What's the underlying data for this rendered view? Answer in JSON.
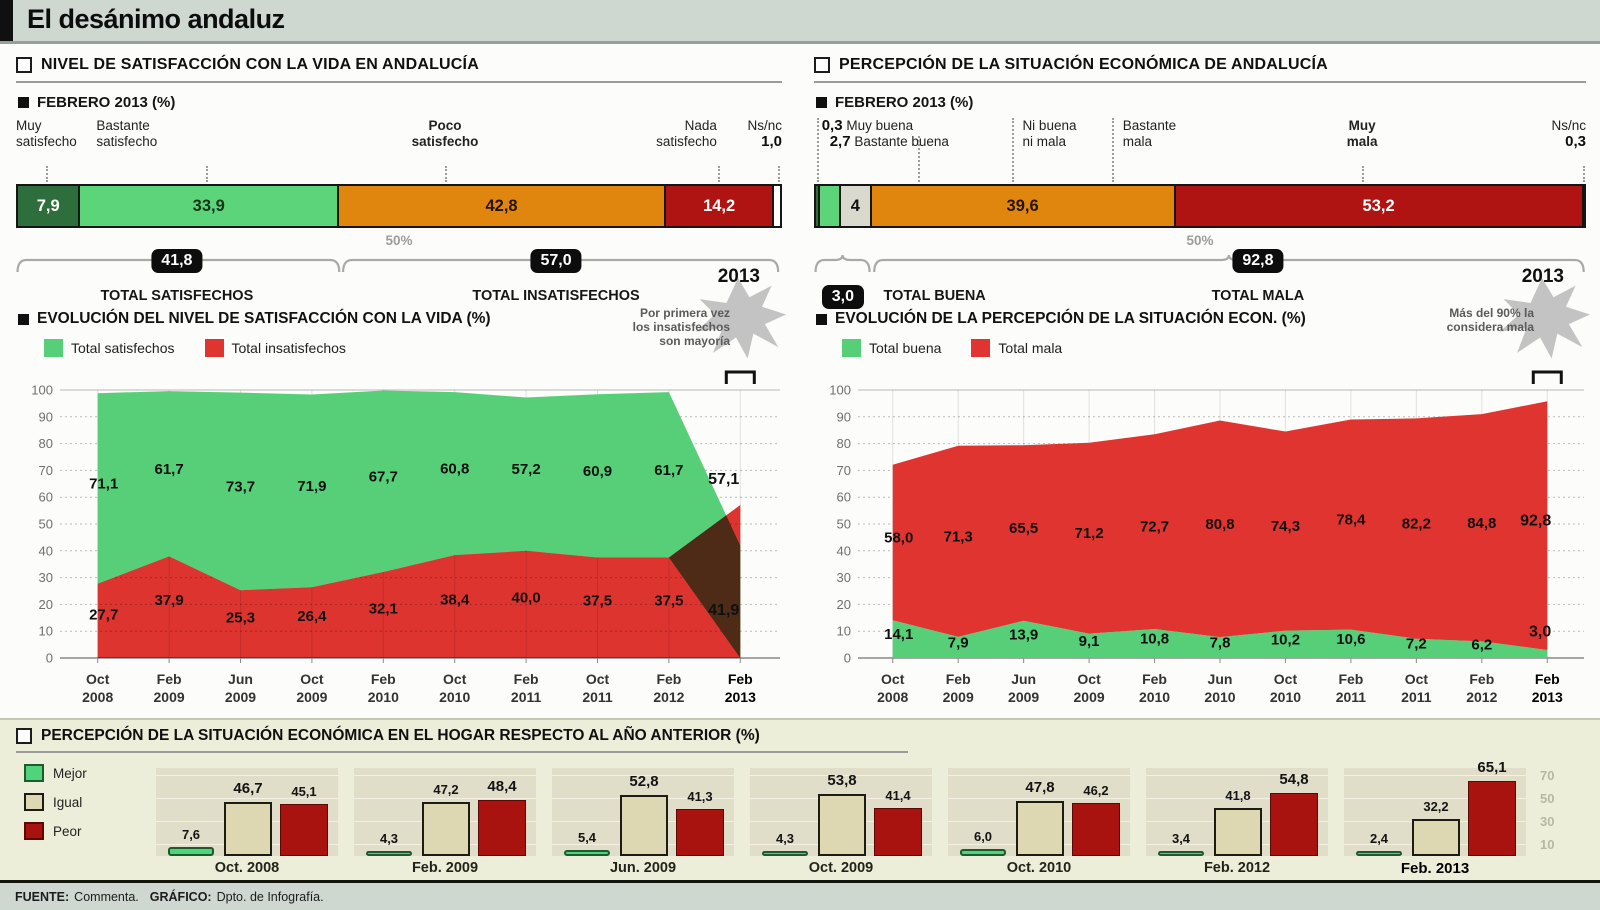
{
  "page": {
    "title": "El desánimo andaluz"
  },
  "footer": {
    "source_label": "FUENTE:",
    "source": "Commenta.",
    "graphic_label": "GRÁFICO:",
    "graphic": "Dpto. de Infografía."
  },
  "panels": {
    "left": {
      "title": "NIVEL DE SATISFACCIÓN CON LA VIDA EN ANDALUCÍA",
      "subtitle": "FEBRERO 2013 (%)",
      "labels": {
        "l1a": "Muy",
        "l1b": "satisfecho",
        "l2a": "Bastante",
        "l2b": "satisfecho",
        "l3a": "Poco",
        "l3b": "satisfecho",
        "l4a": "Nada",
        "l4b": "satisfecho",
        "l5a": "Ns/nc",
        "l5v": "1,0"
      },
      "fifty": "50%",
      "totals": {
        "v1": "41,8",
        "t1": "TOTAL SATISFECHOS",
        "v2": "57,0",
        "t2": "TOTAL INSATISFECHOS"
      },
      "evo_title": "EVOLUCIÓN DEL NIVEL DE SATISFACCIÓN CON LA VIDA (%)",
      "anno_year": "2013",
      "anno1": "Por primera vez",
      "anno2": "los insatisfechos",
      "anno3": "son mayoría"
    },
    "right": {
      "title": "PERCEPCIÓN DE LA SITUACIÓN ECONÓMICA DE ANDALUCÍA",
      "subtitle": "FEBRERO 2013 (%)",
      "labels": {
        "v1": "0,3",
        "l1": "Muy buena",
        "v2": "2,7",
        "l2": "Bastante buena",
        "l3a": "Ni buena",
        "l3b": "ni mala",
        "l4a": "Bastante",
        "l4b": "mala",
        "l5a": "Muy",
        "l5b": "mala",
        "l6a": "Ns/nc",
        "l6v": "0,3"
      },
      "fifty": "50%",
      "totals": {
        "v1": "3,0",
        "t1": "TOTAL BUENA",
        "v2": "92,8",
        "t2": "TOTAL MALA"
      },
      "evo_title": "EVOLUCIÓN DE LA PERCEPCIÓN DE LA SITUACIÓN ECON. (%)",
      "anno_year": "2013",
      "anno1": "Más del 90% la",
      "anno2": "considera mala"
    },
    "bottom": {
      "title": "PERCEPCIÓN DE LA SITUACIÓN ECONÓMICA EN EL HOGAR RESPECTO AL AÑO ANTERIOR (%)"
    }
  },
  "chart_data": [
    {
      "id": "satisfaction_bar",
      "type": "bar",
      "stacked": true,
      "horizontal": true,
      "title": "NIVEL DE SATISFACCIÓN CON LA VIDA EN ANDALUCÍA — FEBRERO 2013 (%)",
      "segments": [
        {
          "label": "Muy satisfecho",
          "value": 7.9,
          "display": "7,9",
          "color": "#2e6e3c",
          "text_color": "#ffffff",
          "show_value": true
        },
        {
          "label": "Bastante satisfecho",
          "value": 33.9,
          "display": "33,9",
          "color": "#5bd47a",
          "text_color": "#15351b",
          "show_value": true
        },
        {
          "label": "Poco satisfecho",
          "value": 42.8,
          "display": "42,8",
          "color": "#e0860e",
          "text_color": "#241403",
          "show_value": true
        },
        {
          "label": "Nada satisfecho",
          "value": 14.2,
          "display": "14,2",
          "color": "#b01412",
          "text_color": "#ffffff",
          "show_value": true
        },
        {
          "label": "Ns/nc",
          "value": 1.0,
          "display": "1,0",
          "color": "#ffffff",
          "text_color": "#111111",
          "show_value": false
        }
      ],
      "axis_mark": "50%",
      "totals": [
        {
          "display": "41,8",
          "label": "TOTAL SATISFECHOS",
          "from": 0.002,
          "to": 0.422
        },
        {
          "display": "57,0",
          "label": "TOTAL INSATISFECHOS",
          "from": 0.427,
          "to": 0.995
        }
      ]
    },
    {
      "id": "economy_bar",
      "type": "bar",
      "stacked": true,
      "horizontal": true,
      "title": "PERCEPCIÓN DE LA SITUACIÓN ECONÓMICA DE ANDALUCÍA — FEBRERO 2013 (%)",
      "segments": [
        {
          "label": "Muy buena",
          "value": 0.3,
          "display": "0,3",
          "color": "#2e6e3c",
          "text_color": "#ffffff",
          "show_value": false
        },
        {
          "label": "Bastante buena",
          "value": 2.7,
          "display": "2,7",
          "color": "#5bd47a",
          "text_color": "#15351b",
          "show_value": false
        },
        {
          "label": "Ni buena ni mala",
          "value": 4,
          "display": "4",
          "color": "#d9d9ce",
          "text_color": "#111111",
          "show_value": true
        },
        {
          "label": "Bastante mala",
          "value": 39.6,
          "display": "39,6",
          "color": "#e0860e",
          "text_color": "#241403",
          "show_value": true
        },
        {
          "label": "Muy mala",
          "value": 53.2,
          "display": "53,2",
          "color": "#b01412",
          "text_color": "#ffffff",
          "show_value": true
        },
        {
          "label": "Ns/nc",
          "value": 0.3,
          "display": "0,3",
          "color": "#ffffff",
          "text_color": "#111111",
          "show_value": false
        }
      ],
      "axis_mark": "50%",
      "totals": [
        {
          "display": "3,0",
          "label": "TOTAL BUENA",
          "from": 0.002,
          "to": 0.072
        },
        {
          "display": "92,8",
          "label": "TOTAL MALA",
          "from": 0.078,
          "to": 0.997
        }
      ]
    },
    {
      "id": "satisfaction_evolution",
      "type": "area",
      "ylim": [
        0,
        100
      ],
      "grid": true,
      "x": [
        [
          "Oct",
          "2008"
        ],
        [
          "Feb",
          "2009"
        ],
        [
          "Jun",
          "2009"
        ],
        [
          "Oct",
          "2009"
        ],
        [
          "Feb",
          "2010"
        ],
        [
          "Oct",
          "2010"
        ],
        [
          "Feb",
          "2011"
        ],
        [
          "Oct",
          "2011"
        ],
        [
          "Feb",
          "2012"
        ],
        [
          "Feb",
          "2013"
        ]
      ],
      "series": [
        {
          "name": "Total satisfechos",
          "color": "#57cf78",
          "values": [
            71.1,
            61.7,
            73.7,
            71.9,
            67.7,
            60.8,
            57.2,
            60.9,
            61.7,
            41.9
          ]
        },
        {
          "name": "Total insatisfechos",
          "color": "#e03431",
          "values": [
            27.7,
            37.9,
            25.3,
            26.4,
            32.1,
            38.4,
            40.0,
            37.5,
            37.5,
            57.1
          ]
        }
      ],
      "annotation": {
        "year": "2013",
        "text": [
          "Por primera vez",
          "los insatisfechos",
          "son mayoría"
        ]
      }
    },
    {
      "id": "economy_evolution",
      "type": "area",
      "ylim": [
        0,
        100
      ],
      "grid": true,
      "x": [
        [
          "Oct",
          "2008"
        ],
        [
          "Feb",
          "2009"
        ],
        [
          "Jun",
          "2009"
        ],
        [
          "Oct",
          "2009"
        ],
        [
          "Feb",
          "2010"
        ],
        [
          "Jun",
          "2010"
        ],
        [
          "Oct",
          "2010"
        ],
        [
          "Feb",
          "2011"
        ],
        [
          "Oct",
          "2011"
        ],
        [
          "Feb",
          "2012"
        ],
        [
          "Feb",
          "2013"
        ]
      ],
      "series": [
        {
          "name": "Total buena",
          "color": "#57cf78",
          "values": [
            14.1,
            7.9,
            13.9,
            9.1,
            10.8,
            7.8,
            10.2,
            10.6,
            7.2,
            6.2,
            3.0
          ]
        },
        {
          "name": "Total mala",
          "color": "#e03431",
          "values": [
            58.0,
            71.3,
            65.5,
            71.2,
            72.7,
            80.8,
            74.3,
            78.4,
            82.2,
            84.8,
            92.8
          ]
        }
      ],
      "annotation": {
        "year": "2013",
        "text": [
          "Más del 90% la",
          "considera mala"
        ]
      }
    },
    {
      "id": "household_bars",
      "type": "bar",
      "grouped": true,
      "title": "PERCEPCIÓN DE LA SITUACIÓN ECONÓMICA EN EL HOGAR RESPECTO AL AÑO ANTERIOR (%)",
      "legend": [
        {
          "name": "Mejor",
          "color": "#4fd47c"
        },
        {
          "name": "Igual",
          "color": "#ddd8b2"
        },
        {
          "name": "Peor",
          "color": "#a9130f"
        }
      ],
      "axis_ticks": [
        10,
        30,
        50,
        70
      ],
      "groups": [
        {
          "label": "Oct. 2008",
          "values": [
            7.6,
            46.7,
            45.1
          ],
          "bold_index": 1
        },
        {
          "label": "Feb. 2009",
          "values": [
            4.3,
            47.2,
            48.4
          ],
          "bold_index": 2
        },
        {
          "label": "Jun. 2009",
          "values": [
            5.4,
            52.8,
            41.3
          ],
          "bold_index": 1
        },
        {
          "label": "Oct. 2009",
          "values": [
            4.3,
            53.8,
            41.4
          ],
          "bold_index": 1
        },
        {
          "label": "Oct. 2010",
          "values": [
            6.0,
            47.8,
            46.2
          ],
          "bold_index": 1
        },
        {
          "label": "Feb. 2012",
          "values": [
            3.4,
            41.8,
            54.8
          ],
          "bold_index": 2
        },
        {
          "label": "Feb. 2013",
          "values": [
            2.4,
            32.2,
            65.1
          ],
          "bold_index": 2,
          "bold_label": true
        }
      ]
    }
  ]
}
